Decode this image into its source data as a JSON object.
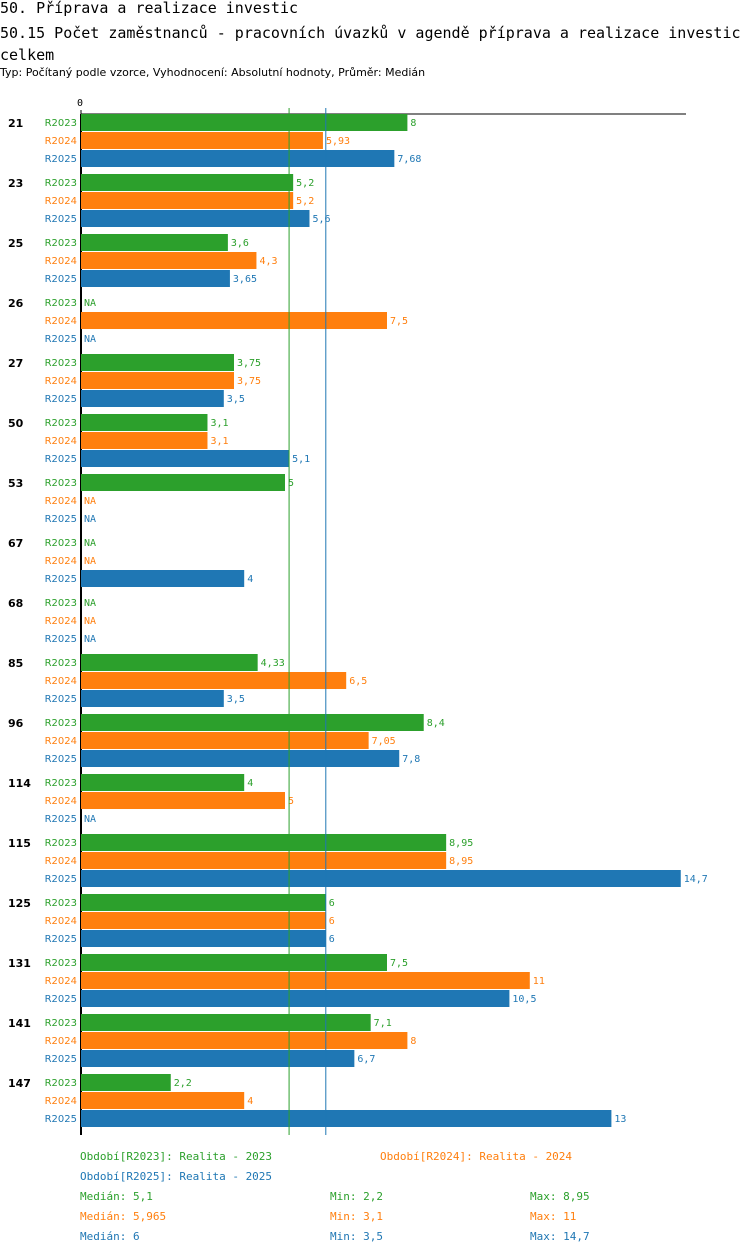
{
  "header": {
    "title": "50. Příprava a realizace investic",
    "subtitle": "50.15 Počet zaměstnanců - pracovních úvazků v agendě příprava a realizace investic celkem",
    "type_line": "Typ: Počítaný podle vzorce, Vyhodnocení: Absolutní hodnoty, Průměr: Medián"
  },
  "colors": {
    "R2023": "#2ca02c",
    "R2024": "#ff7f0e",
    "R2025": "#1f77b4"
  },
  "chart_data": {
    "type": "bar",
    "orientation": "horizontal",
    "x_tick_label": "0",
    "categories": [
      "21",
      "23",
      "25",
      "26",
      "27",
      "50",
      "53",
      "67",
      "68",
      "85",
      "96",
      "114",
      "115",
      "125",
      "131",
      "141",
      "147"
    ],
    "series": [
      {
        "name": "R2023",
        "values": [
          8,
          5.2,
          3.6,
          null,
          3.75,
          3.1,
          5,
          null,
          null,
          4.33,
          8.4,
          4,
          8.95,
          6,
          7.5,
          7.1,
          2.2
        ]
      },
      {
        "name": "R2024",
        "values": [
          5.93,
          5.2,
          4.3,
          7.5,
          3.75,
          3.1,
          null,
          null,
          null,
          6.5,
          7.05,
          5,
          8.95,
          6,
          11,
          8,
          4
        ]
      },
      {
        "name": "R2025",
        "values": [
          7.68,
          5.6,
          3.65,
          null,
          3.5,
          5.1,
          null,
          4,
          null,
          3.5,
          7.8,
          null,
          14.7,
          6,
          10.5,
          6.7,
          13
        ]
      }
    ],
    "na_label": "NA",
    "reference_lines": [
      {
        "name": "median-R2023",
        "value": 5.1,
        "color": "#2ca02c"
      },
      {
        "name": "median-R2025",
        "value": 6,
        "color": "#1f77b4"
      }
    ]
  },
  "legend": {
    "period_2023": "Období[R2023]: Realita - 2023",
    "period_2024": "Období[R2024]: Realita - 2024",
    "period_2025": "Období[R2025]: Realita - 2025",
    "stats": [
      {
        "series": "R2023",
        "median": "Medián: 5,1",
        "min": "Min: 2,2",
        "max": "Max: 8,95"
      },
      {
        "series": "R2024",
        "median": "Medián: 5,965",
        "min": "Min: 3,1",
        "max": "Max: 11"
      },
      {
        "series": "R2025",
        "median": "Medián: 6",
        "min": "Min: 3,5",
        "max": "Max: 14,7"
      }
    ]
  }
}
